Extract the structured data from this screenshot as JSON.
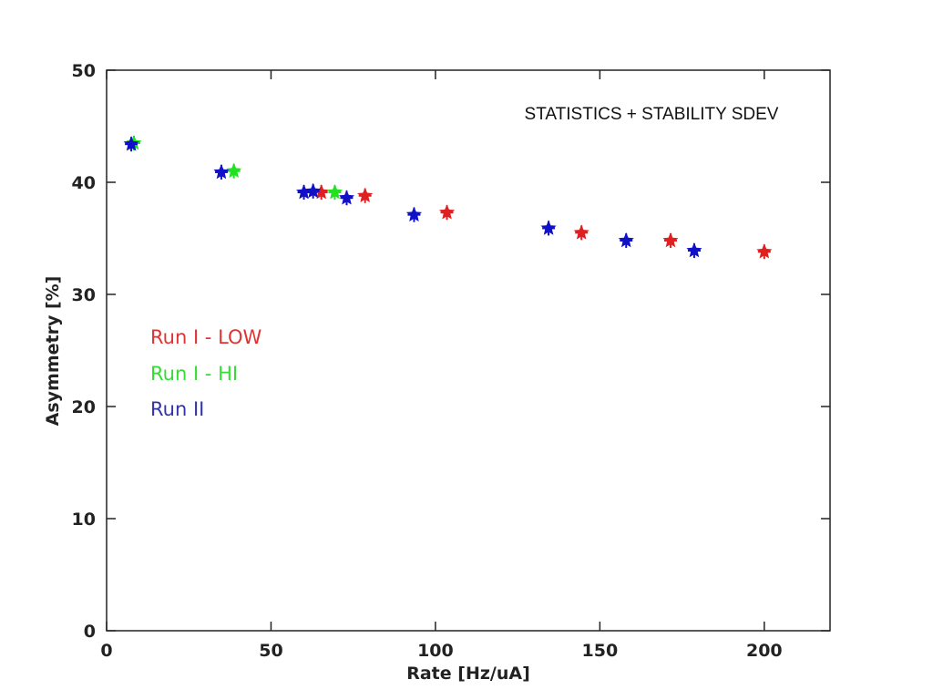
{
  "chart_data": {
    "type": "scatter",
    "title": "",
    "annotation": "STATISTICS + STABILITY SDEV",
    "xlabel": "Rate [Hz/uA]",
    "ylabel": "Asymmetry [%]",
    "xlim": [
      0,
      220
    ],
    "ylim": [
      0,
      50
    ],
    "xticks": [
      0,
      50,
      100,
      150,
      200
    ],
    "yticks": [
      0,
      10,
      20,
      30,
      40,
      50
    ],
    "grid": false,
    "legend_placement": "middle-left",
    "marker": "star",
    "series": [
      {
        "name": "Run I - LOW",
        "color": "#e02020",
        "x": [
          65.3,
          78.6,
          103.5,
          144.4,
          171.5,
          200.0
        ],
        "y": [
          39.1,
          38.8,
          37.3,
          35.5,
          34.8,
          33.8
        ]
      },
      {
        "name": "Run I - HI",
        "color": "#22e022",
        "x": [
          8.3,
          38.7,
          69.4
        ],
        "y": [
          43.5,
          41.0,
          39.1
        ]
      },
      {
        "name": "Run II",
        "color": "#1010c8",
        "x": [
          7.5,
          34.9,
          60.0,
          62.8,
          73.0,
          93.5,
          134.4,
          158.0,
          178.7
        ],
        "y": [
          43.4,
          40.9,
          39.1,
          39.2,
          38.6,
          37.1,
          35.9,
          34.8,
          33.9
        ]
      }
    ]
  }
}
